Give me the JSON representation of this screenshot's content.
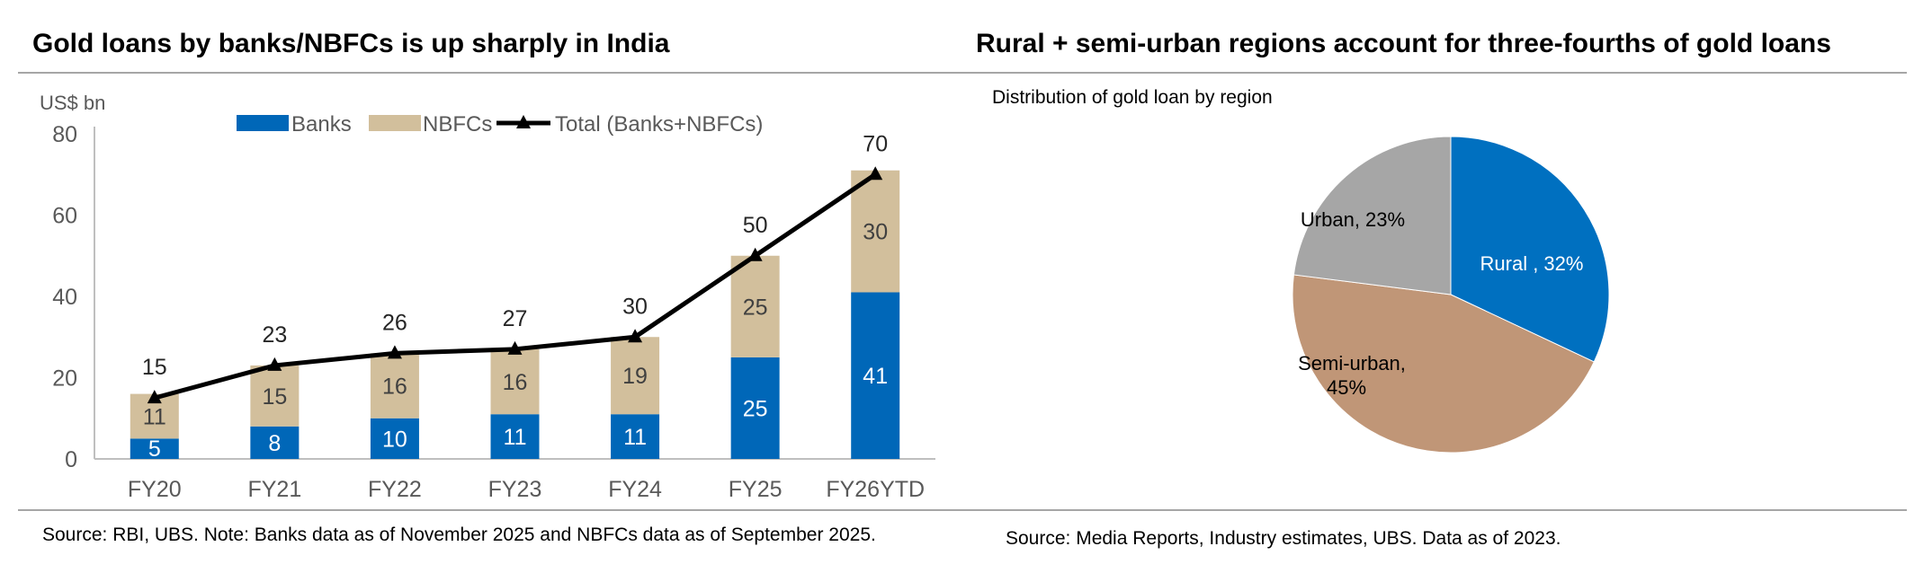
{
  "left_panel": {
    "title": "Gold loans by banks/NBFCs is up sharply in India",
    "source": "Source: RBI, UBS. Note: Banks data as of November 2025 and NBFCs data as of September 2025."
  },
  "right_panel": {
    "title": "Rural + semi-urban regions account for three-fourths of gold loans",
    "source": "Source: Media Reports, Industry estimates, UBS. Data as of 2023."
  },
  "colors": {
    "banks": "#0067b8",
    "nbfcs": "#d2bf9c",
    "total_line": "#000000",
    "rural": "#0070c0",
    "semi_urban": "#c09677",
    "urban": "#a6a6a6",
    "axis": "#bfbfbf",
    "tick_text": "#595959"
  },
  "chart_data": [
    {
      "type": "bar",
      "stacked": true,
      "ylabel": "US$ bn",
      "ylim": [
        0,
        80
      ],
      "yticks": [
        0,
        20,
        40,
        60,
        80
      ],
      "categories": [
        "FY20",
        "FY21",
        "FY22",
        "FY23",
        "FY24",
        "FY25",
        "FY26YTD"
      ],
      "series": [
        {
          "name": "Banks",
          "values": [
            5,
            8,
            10,
            11,
            11,
            25,
            41
          ]
        },
        {
          "name": "NBFCs",
          "values": [
            11,
            15,
            16,
            16,
            19,
            25,
            30
          ]
        }
      ],
      "line_series": {
        "name": "Total (Banks+NBFCs)",
        "values": [
          15,
          23,
          26,
          27,
          30,
          50,
          70
        ],
        "marker": "triangle"
      },
      "legend": [
        "Banks",
        "NBFCs",
        "Total (Banks+NBFCs)"
      ],
      "legend_position": "top"
    },
    {
      "type": "pie",
      "title": "Distribution of gold loan by region",
      "slices": [
        {
          "label": "Rural",
          "value": 32,
          "text": "Rural , 32%"
        },
        {
          "label": "Semi-urban",
          "value": 45,
          "text_lines": [
            "Semi-urban,",
            "45%"
          ]
        },
        {
          "label": "Urban",
          "value": 23,
          "text": "Urban, 23%"
        }
      ]
    }
  ]
}
